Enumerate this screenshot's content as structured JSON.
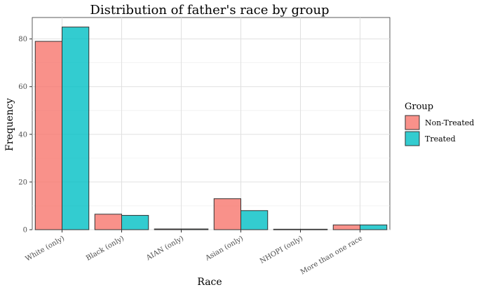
{
  "chart_data": {
    "type": "bar",
    "title": "Distribution of father's race by group",
    "xlabel": "Race",
    "ylabel": "Frequency",
    "categories": [
      "White (only)",
      "Black (only)",
      "AIAN (only)",
      "Asian (only)",
      "NHOPI (only)",
      "More than one race"
    ],
    "series": [
      {
        "name": "Non-Treated",
        "color": "#F8766D",
        "values": [
          79,
          6.5,
          0.3,
          13,
          0.2,
          2
        ]
      },
      {
        "name": "Treated",
        "color": "#00BFC4",
        "values": [
          85,
          6,
          0.3,
          8,
          0.2,
          2
        ]
      }
    ],
    "ylim": [
      0,
      89
    ],
    "yticks": [
      0,
      20,
      40,
      60,
      80
    ],
    "grid": true,
    "legend": {
      "title": "Group",
      "position": "right"
    }
  }
}
